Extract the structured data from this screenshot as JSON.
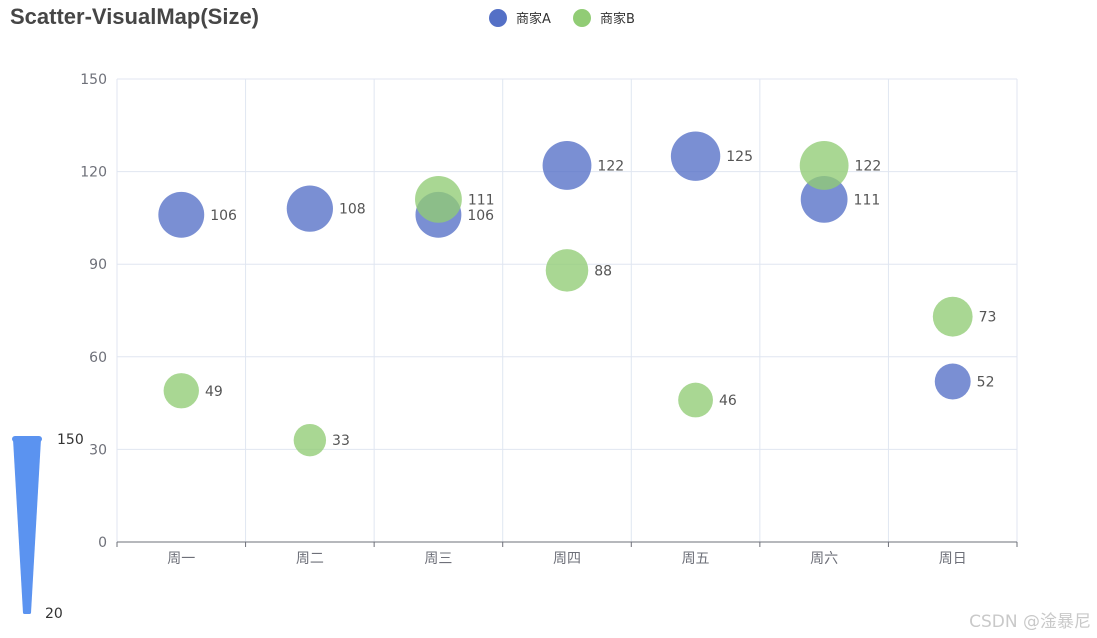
{
  "chart_data": {
    "type": "scatter",
    "title": "Scatter-VisualMap(Size)",
    "categories": [
      "周一",
      "周二",
      "周三",
      "周四",
      "周五",
      "周六",
      "周日"
    ],
    "series": [
      {
        "name": "商家A",
        "color": "#5470c6",
        "values": [
          106,
          108,
          106,
          122,
          125,
          111,
          52
        ]
      },
      {
        "name": "商家B",
        "color": "#91cc75",
        "values": [
          49,
          33,
          111,
          88,
          46,
          122,
          73
        ]
      }
    ],
    "ylim": [
      0,
      150
    ],
    "yticks": [
      "0",
      "30",
      "60",
      "90",
      "120",
      "150"
    ],
    "grid": true,
    "legend": "top-center",
    "visual_map": {
      "dimension": "size",
      "min": 20,
      "max": 150,
      "min_label": "20",
      "max_label": "150",
      "color": "#5b93f0"
    }
  },
  "watermark": "CSDN @淦暴尼"
}
